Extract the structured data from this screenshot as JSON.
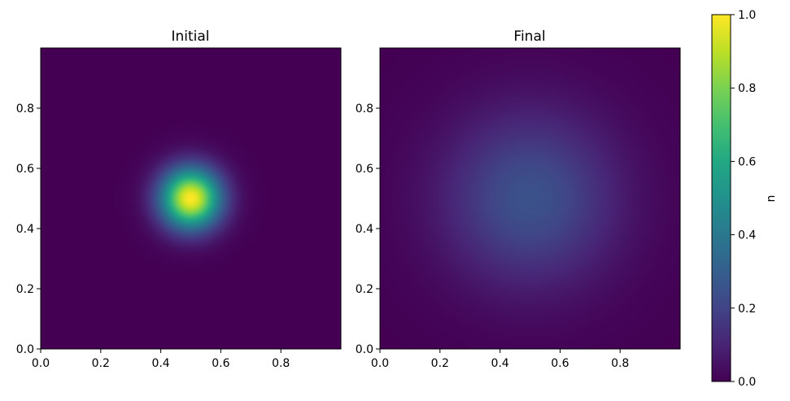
{
  "chart_data": [
    {
      "type": "heatmap",
      "title": "Initial",
      "colormap": "viridis",
      "xlim": [
        0.0,
        1.0
      ],
      "ylim": [
        0.0,
        1.0
      ],
      "xticks": [
        "0.0",
        "0.2",
        "0.4",
        "0.6",
        "0.8"
      ],
      "yticks": [
        "0.0",
        "0.2",
        "0.4",
        "0.6",
        "0.8"
      ],
      "field": {
        "kind": "gaussian",
        "center_x": 0.5,
        "center_y": 0.5,
        "sigma": 0.07,
        "peak": 1.0
      }
    },
    {
      "type": "heatmap",
      "title": "Final",
      "colormap": "viridis",
      "xlim": [
        0.0,
        1.0
      ],
      "ylim": [
        0.0,
        1.0
      ],
      "xticks": [
        "0.0",
        "0.2",
        "0.4",
        "0.6",
        "0.8"
      ],
      "yticks": [
        "0.0",
        "0.2",
        "0.4",
        "0.6",
        "0.8"
      ],
      "field": {
        "kind": "gaussian",
        "center_x": 0.5,
        "center_y": 0.5,
        "sigma": 0.2,
        "peak": 0.25
      }
    }
  ],
  "colorbar": {
    "label": "u",
    "range": [
      0.0,
      1.0
    ],
    "ticks": [
      "0.0",
      "0.2",
      "0.4",
      "0.6",
      "0.8",
      "1.0"
    ],
    "colormap": "viridis"
  }
}
